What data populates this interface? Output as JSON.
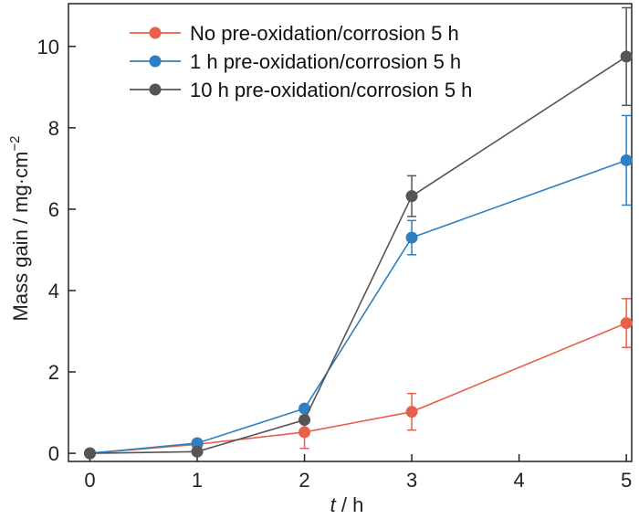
{
  "chart_data": {
    "type": "line",
    "xlabel_var": "t",
    "xlabel_unit": " / h",
    "ylabel_main": "Mass gain / mg·cm",
    "ylabel_sup": "−2",
    "xlim": [
      -0.2,
      5.05
    ],
    "ylim": [
      -0.2,
      11.05
    ],
    "xticks": [
      0,
      1,
      2,
      3,
      4,
      5
    ],
    "yticks": [
      0,
      2,
      4,
      6,
      8,
      10
    ],
    "x": [
      0,
      1,
      2,
      3,
      5
    ],
    "legend_position": "top-left",
    "grid": false,
    "series": [
      {
        "name": "No pre-oxidation/corrosion 5 h",
        "color": "#e8604c",
        "values": [
          0.0,
          0.22,
          0.52,
          1.02,
          3.2
        ],
        "errors": [
          0.0,
          0.0,
          0.4,
          0.45,
          0.6
        ]
      },
      {
        "name": "1 h pre-oxidation/corrosion 5 h",
        "color": "#2f7fc1",
        "values": [
          0.0,
          0.25,
          1.1,
          5.3,
          7.2
        ],
        "errors": [
          0.0,
          0.0,
          0.0,
          0.42,
          1.1
        ]
      },
      {
        "name": "10 h pre-oxidation/corrosion 5 h",
        "color": "#555555",
        "values": [
          0.0,
          0.04,
          0.82,
          6.32,
          9.75
        ],
        "errors": [
          0.0,
          0.0,
          0.0,
          0.5,
          1.2
        ]
      }
    ]
  }
}
